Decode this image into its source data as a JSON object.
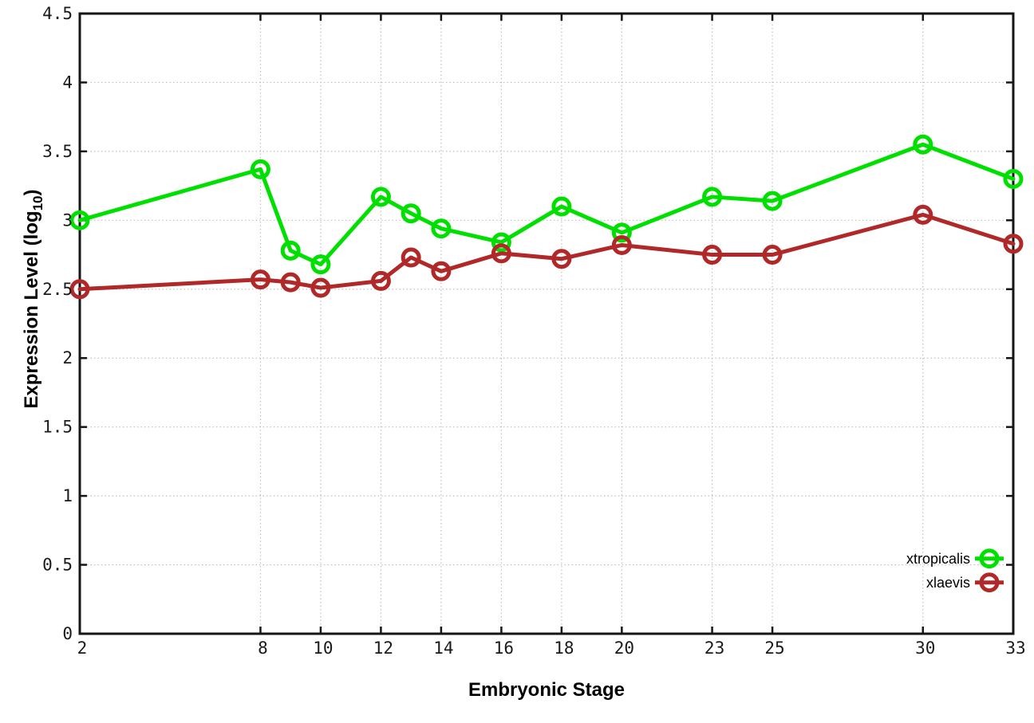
{
  "chart_data": {
    "type": "line",
    "title": "",
    "xlabel": "Embryonic Stage",
    "ylabel": "Expression Level (log10)",
    "ylabel_parts": {
      "main": "Expression Level (log",
      "sub": "10",
      "end": ")"
    },
    "x": [
      2,
      8,
      9,
      10,
      12,
      13,
      14,
      16,
      18,
      20,
      23,
      25,
      30,
      33
    ],
    "series": [
      {
        "name": "xtropicalis",
        "color": "#00e000",
        "values": [
          3.0,
          3.37,
          2.78,
          2.68,
          3.17,
          3.05,
          2.94,
          2.84,
          3.1,
          2.91,
          3.17,
          3.14,
          3.55,
          3.3
        ]
      },
      {
        "name": "xlaevis",
        "color": "#b02828",
        "values": [
          2.5,
          2.57,
          2.55,
          2.51,
          2.56,
          2.73,
          2.63,
          2.76,
          2.72,
          2.82,
          2.75,
          2.75,
          3.04,
          2.83
        ]
      }
    ],
    "xlim": [
      2,
      33
    ],
    "ylim": [
      0,
      4.5
    ],
    "xticks": [
      2,
      8,
      10,
      12,
      14,
      16,
      18,
      20,
      23,
      25,
      30,
      33
    ],
    "yticks": [
      "0",
      "0.5",
      "1",
      "1.5",
      "2",
      "2.5",
      "3",
      "3.5",
      "4",
      "4.5"
    ],
    "grid": true,
    "legend_position": "bottom-right",
    "colors": {
      "axis": "#161616",
      "grid": "#c0c0c0",
      "background": "#ffffff"
    }
  }
}
